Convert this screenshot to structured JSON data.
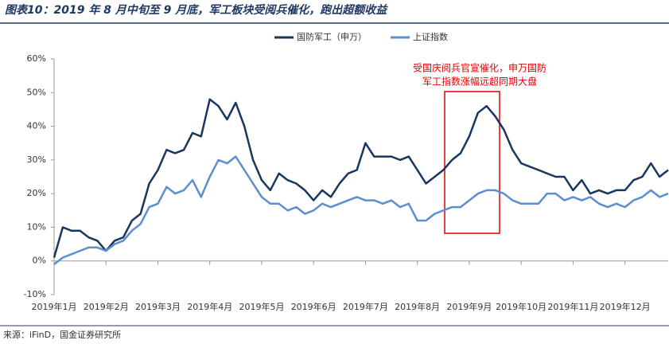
{
  "chart_data": {
    "type": "line",
    "title": "图表10：2019 年 8 月中旬至 9 月底，军工板块受阅兵催化，跑出超额收益",
    "source": "来源：iFinD，国金证券研究所",
    "annotation": [
      "受国庆阅兵官宣催化，申万国防",
      "军工指数涨幅远超同期大盘"
    ],
    "legend": "top",
    "grid": false,
    "categories": [
      "2019年1月",
      null,
      null,
      null,
      null,
      null,
      "2019年2月",
      null,
      null,
      null,
      null,
      null,
      "2019年3月",
      null,
      null,
      null,
      null,
      null,
      "2019年4月",
      null,
      null,
      null,
      null,
      null,
      "2019年5月",
      null,
      null,
      null,
      null,
      null,
      "2019年6月",
      null,
      null,
      null,
      null,
      null,
      "2019年7月",
      null,
      null,
      null,
      null,
      null,
      "2019年8月",
      null,
      null,
      null,
      null,
      null,
      "2019年9月",
      null,
      null,
      null,
      null,
      null,
      "2019年10月",
      null,
      null,
      null,
      null,
      null,
      "2019年11月",
      null,
      null,
      null,
      null,
      null,
      "2019年12月",
      null,
      null,
      null,
      null,
      null
    ],
    "ylim": [
      -10,
      60
    ],
    "yticks": [
      {
        "value": -10,
        "label": "-10%"
      },
      {
        "value": 0,
        "label": "0%"
      },
      {
        "value": 10,
        "label": "10%"
      },
      {
        "value": 20,
        "label": "20%"
      },
      {
        "value": 30,
        "label": "30%"
      },
      {
        "value": 40,
        "label": "40%"
      },
      {
        "value": 50,
        "label": "50%"
      },
      {
        "value": 60,
        "label": "60%"
      }
    ],
    "series": [
      {
        "name": "国防军工（申万）",
        "color": "#17375e",
        "values": [
          1,
          10,
          9,
          9,
          7,
          6,
          3,
          6,
          7,
          12,
          14,
          23,
          27,
          33,
          32,
          33,
          38,
          37,
          48,
          46,
          42,
          47,
          40,
          30,
          24,
          21,
          26,
          24,
          23,
          21,
          18,
          21,
          19,
          23,
          26,
          27,
          35,
          31,
          31,
          31,
          30,
          31,
          27,
          23,
          25,
          27,
          30,
          32,
          37,
          44,
          46,
          43,
          39,
          33,
          29,
          28,
          27,
          26,
          25,
          25,
          21,
          24,
          20,
          21,
          20,
          21,
          21,
          24,
          25,
          29,
          25,
          27
        ]
      },
      {
        "name": "上证指数",
        "color": "#5b8fd0",
        "values": [
          -1,
          1,
          2,
          3,
          4,
          4,
          3,
          5,
          6,
          9,
          11,
          16,
          17,
          22,
          20,
          21,
          24,
          19,
          25,
          30,
          29,
          31,
          27,
          23,
          19,
          17,
          17,
          15,
          16,
          14,
          15,
          17,
          16,
          17,
          18,
          19,
          18,
          18,
          17,
          18,
          16,
          17,
          12,
          12,
          14,
          15,
          16,
          16,
          18,
          20,
          21,
          21,
          20,
          18,
          17,
          17,
          17,
          20,
          20,
          18,
          19,
          18,
          19,
          17,
          16,
          17,
          16,
          18,
          19,
          21,
          19,
          20
        ]
      }
    ]
  }
}
